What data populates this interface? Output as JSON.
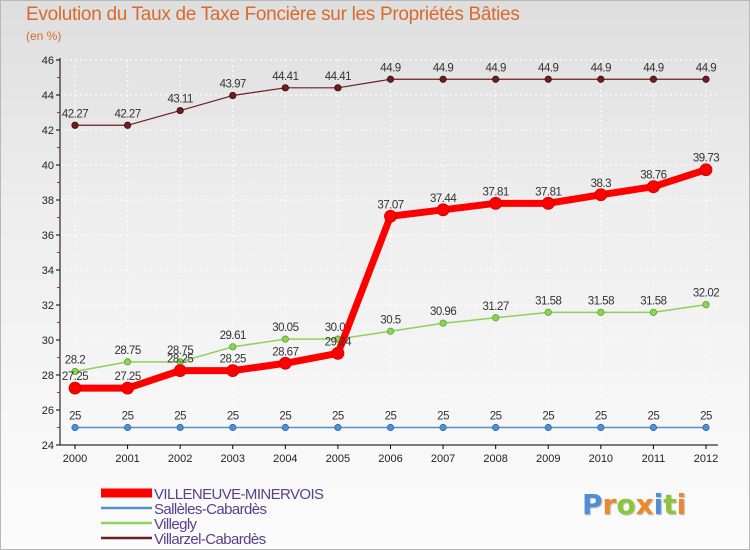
{
  "header": {
    "title": "Evolution du Taux de Taxe Foncière sur les Propriétés Bâties",
    "subtitle": "(en %)"
  },
  "logo": {
    "letters": [
      "P",
      "r",
      "o",
      "x",
      "i",
      "t",
      "i"
    ],
    "colors": [
      "#4f8fd6",
      "#e9892b",
      "#8cc43c",
      "#e9892b",
      "#4f8fd6",
      "#8cc43c",
      "#e9892b"
    ]
  },
  "chart_data": {
    "type": "line",
    "title": "Evolution du Taux de Taxe Foncière sur les Propriétés Bâties",
    "ylabel": "(en %)",
    "xlabel": "",
    "ylim": [
      24,
      46
    ],
    "yticks": [
      24,
      26,
      28,
      30,
      32,
      34,
      36,
      38,
      40,
      42,
      44,
      46
    ],
    "x": [
      "2000",
      "2001",
      "2002",
      "2003",
      "2004",
      "2005",
      "2006",
      "2007",
      "2008",
      "2009",
      "2010",
      "2011",
      "2012"
    ],
    "legend_position": "bottom-left",
    "series": [
      {
        "name": "Villarzel-Cabardès",
        "color": "#6b1f1f",
        "values": [
          42.27,
          42.27,
          43.11,
          43.97,
          44.41,
          44.41,
          44.9,
          44.9,
          44.9,
          44.9,
          44.9,
          44.9,
          44.9
        ],
        "labels": [
          "42.27",
          "42.27",
          "43.11",
          "43.97",
          "44.41",
          "44.41",
          "44.9",
          "44.9",
          "44.9",
          "44.9",
          "44.9",
          "44.9",
          "44.9"
        ]
      },
      {
        "name": "Villegly",
        "color": "#8fd15a",
        "values": [
          28.2,
          28.75,
          28.75,
          29.61,
          30.05,
          30.05,
          30.5,
          30.96,
          31.27,
          31.58,
          31.58,
          31.58,
          32.02
        ],
        "labels": [
          "28.2",
          "28.75",
          "28.75",
          "29.61",
          "30.05",
          "30.05",
          "30.5",
          "30.96",
          "31.27",
          "31.58",
          "31.58",
          "31.58",
          "32.02"
        ]
      },
      {
        "name": "Sallèles-Cabardès",
        "color": "#5a8fc6",
        "values": [
          25,
          25,
          25,
          25,
          25,
          25,
          25,
          25,
          25,
          25,
          25,
          25,
          25
        ],
        "labels": [
          "25",
          "25",
          "25",
          "25",
          "25",
          "25",
          "25",
          "25",
          "25",
          "25",
          "25",
          "25",
          "25"
        ]
      },
      {
        "name": "VILLENEUVE-MINERVOIS",
        "color": "#ff0000",
        "values": [
          27.25,
          27.25,
          28.25,
          28.25,
          28.67,
          29.24,
          37.07,
          37.44,
          37.81,
          37.81,
          38.3,
          38.76,
          39.73
        ],
        "labels": [
          "27.25",
          "27.25",
          "28.25",
          "28.25",
          "28.67",
          "29.24",
          "37.07",
          "37.44",
          "37.81",
          "37.81",
          "38.3",
          "38.76",
          "39.73"
        ]
      }
    ],
    "legend_order": [
      "VILLENEUVE-MINERVOIS",
      "Sallèles-Cabardès",
      "Villegly",
      "Villarzel-Cabardès"
    ]
  }
}
